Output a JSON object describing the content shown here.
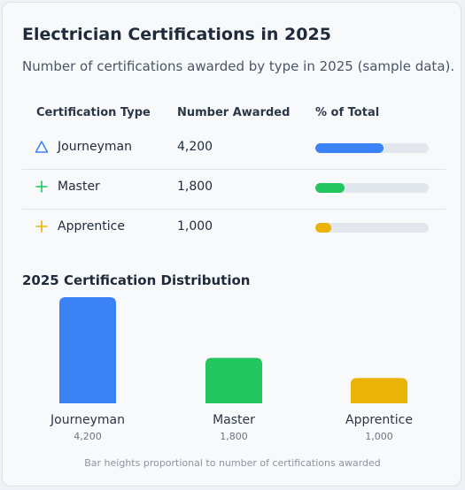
{
  "header": {
    "title": "Electrician Certifications in 2025",
    "subtitle": "Number of certifications awarded by type in 2025 (sample data)."
  },
  "table": {
    "columns": [
      "Certification Type",
      "Number Awarded",
      "% of Total"
    ],
    "rows": [
      {
        "name": "Journeyman",
        "count": "4,200",
        "share": 0.6,
        "icon": "triangle-icon",
        "color": "#3b82f6"
      },
      {
        "name": "Master",
        "count": "1,800",
        "share": 0.257,
        "icon": "plus-icon",
        "color": "#22c55e"
      },
      {
        "name": "Apprentice",
        "count": "1,000",
        "share": 0.143,
        "icon": "plus-icon",
        "color": "#eab308"
      }
    ]
  },
  "chart_section": {
    "title": "2025 Certification Distribution",
    "footnote": "Bar heights proportional to number of certifications awarded"
  },
  "chart_data": {
    "type": "bar",
    "categories": [
      "Journeyman",
      "Master",
      "Apprentice"
    ],
    "values": [
      4200,
      1800,
      1000
    ],
    "value_labels": [
      "4,200",
      "1,800",
      "1,000"
    ],
    "colors": [
      "#3b82f6",
      "#22c55e",
      "#eab308"
    ],
    "title": "2025 Certification Distribution",
    "xlabel": "",
    "ylabel": "",
    "grid": false
  }
}
